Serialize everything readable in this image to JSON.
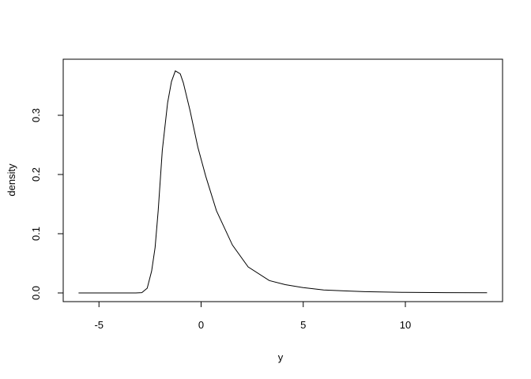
{
  "chart_data": {
    "type": "line",
    "title": "",
    "xlabel": "y",
    "ylabel": "density",
    "xlim": [
      -6.8,
      14.8
    ],
    "ylim": [
      -0.015,
      0.39
    ],
    "xticks": [
      -5,
      0,
      5,
      10
    ],
    "xtick_labels": [
      "-5",
      "0",
      "5",
      "10"
    ],
    "yticks": [
      0.0,
      0.1,
      0.2,
      0.3
    ],
    "ytick_labels": [
      "0.0",
      "0.1",
      "0.2",
      "0.3"
    ],
    "grid": false,
    "line_color": "#000000",
    "series": [
      {
        "x": [
          -6,
          -5,
          -4,
          -3.2,
          -2.9,
          -2.64,
          -2.42,
          -2.25,
          -2.1,
          -1.9,
          -1.64,
          -1.45,
          -1.26,
          -1.02,
          -0.87,
          -0.54,
          -0.16,
          0.23,
          0.75,
          1.53,
          2.3,
          3.34,
          4.12,
          5,
          6,
          7,
          8,
          10,
          12,
          14
        ],
        "y": [
          0,
          0,
          0,
          0,
          0.0005,
          0.008,
          0.037,
          0.077,
          0.139,
          0.241,
          0.321,
          0.357,
          0.375,
          0.37,
          0.355,
          0.308,
          0.246,
          0.197,
          0.139,
          0.081,
          0.044,
          0.021,
          0.014,
          0.009,
          0.005,
          0.0035,
          0.0022,
          0.001,
          0.0005,
          0.0003
        ]
      }
    ]
  }
}
